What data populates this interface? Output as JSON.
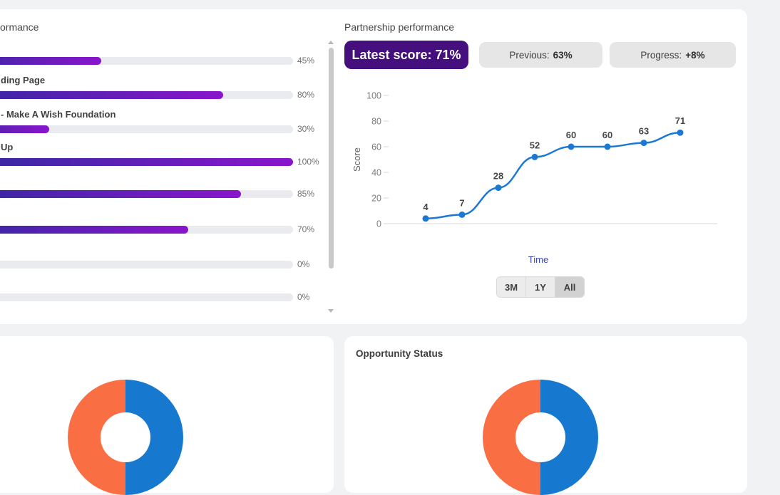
{
  "left_widget": {
    "title": "ormance",
    "track_color": "#e9ebef",
    "bar_gradient": [
      "#2e2a9e",
      "#8a15cc"
    ]
  },
  "right_widget": {
    "title": "Partnership performance",
    "badges": {
      "latest": "Latest score: 71%",
      "latest_bg": "#45107e",
      "previous": {
        "label": "Previous:",
        "value": "63%"
      },
      "progress": {
        "label": "Progress:",
        "value": "+8%"
      }
    },
    "range_buttons": [
      {
        "label": "3M",
        "active": false
      },
      {
        "label": "1Y",
        "active": false
      },
      {
        "label": "All",
        "active": true
      }
    ]
  },
  "bottom_right_widget": {
    "title": "Opportunity Status"
  },
  "chart_data": [
    {
      "type": "line",
      "title": "Partnership performance",
      "ylabel": "Score",
      "xlabel": "Time",
      "values": [
        4,
        7,
        28,
        52,
        60,
        60,
        63,
        71
      ],
      "point_labels": [
        "4",
        "7",
        "28",
        "52",
        "60",
        "60",
        "63",
        "71"
      ],
      "yticks": [
        0,
        20,
        40,
        60,
        80,
        100
      ],
      "ylim": [
        0,
        100
      ],
      "line_color": "#1b78d3",
      "grid": false,
      "legend": false
    },
    {
      "type": "bar",
      "orientation": "horizontal",
      "title": "ormance",
      "categories": [
        "",
        "ding Page",
        "- Make A Wish Foundation",
        "Up",
        "",
        "",
        "",
        ""
      ],
      "values": [
        45,
        80,
        30,
        100,
        85,
        70,
        0,
        0
      ],
      "value_labels": [
        "45%",
        "80%",
        "30%",
        "100%",
        "85%",
        "70%",
        "0%",
        "0%"
      ],
      "xlim": [
        0,
        100
      ]
    },
    {
      "type": "pie",
      "title": "",
      "donut": true,
      "slices": [
        {
          "value": 50,
          "color": "#1778cf"
        },
        {
          "value": 50,
          "color": "#fa6e44"
        }
      ]
    },
    {
      "type": "pie",
      "title": "Opportunity Status",
      "donut": true,
      "slices": [
        {
          "value": 50,
          "color": "#1778cf"
        },
        {
          "value": 50,
          "color": "#fa6e44"
        }
      ]
    }
  ]
}
